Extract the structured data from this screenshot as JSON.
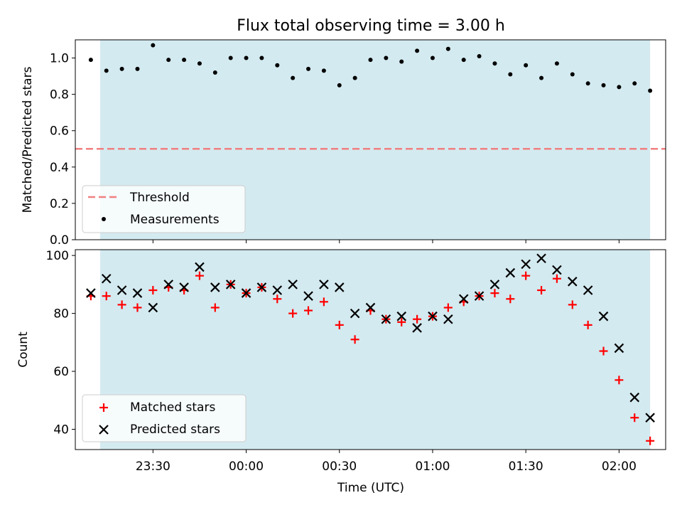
{
  "title": "Flux total observing time = 3.00 h",
  "colors": {
    "band": "#d3eaf0",
    "threshold": "#f08080",
    "measurement": "#000000",
    "matched": "#ff0000",
    "predicted": "#000000"
  },
  "chart_data": [
    {
      "type": "scatter",
      "panel": "top",
      "ylabel": "Matched/Predicted stars",
      "ylim": [
        0,
        1.1
      ],
      "y_ticks": [
        "0.0",
        "0.2",
        "0.4",
        "0.6",
        "0.8",
        "1.0"
      ],
      "x_range": [
        "23:05",
        "02:15"
      ],
      "shaded_span": [
        "23:13",
        "02:10"
      ],
      "threshold": 0.5,
      "legend_position": "lower-left",
      "legend": {
        "threshold": "Threshold",
        "measurements": "Measurements"
      },
      "series": [
        {
          "name": "Measurements",
          "x": [
            "23:10",
            "23:15",
            "23:20",
            "23:25",
            "23:30",
            "23:35",
            "23:40",
            "23:45",
            "23:50",
            "23:55",
            "00:00",
            "00:05",
            "00:10",
            "00:15",
            "00:20",
            "00:25",
            "00:30",
            "00:35",
            "00:40",
            "00:45",
            "00:50",
            "00:55",
            "01:00",
            "01:05",
            "01:10",
            "01:15",
            "01:20",
            "01:25",
            "01:30",
            "01:35",
            "01:40",
            "01:45",
            "01:50",
            "01:55",
            "02:00",
            "02:05",
            "02:10"
          ],
          "y": [
            0.99,
            0.93,
            0.94,
            0.94,
            1.07,
            0.99,
            0.99,
            0.97,
            0.92,
            1.0,
            1.0,
            1.0,
            0.96,
            0.89,
            0.94,
            0.93,
            0.85,
            0.89,
            0.99,
            1.0,
            0.98,
            1.04,
            1.0,
            1.05,
            0.99,
            1.01,
            0.97,
            0.91,
            0.96,
            0.89,
            0.97,
            0.91,
            0.86,
            0.85,
            0.84,
            0.86,
            0.82
          ]
        }
      ]
    },
    {
      "type": "scatter",
      "panel": "bottom",
      "xlabel": "Time (UTC)",
      "ylabel": "Count",
      "ylim": [
        33,
        102
      ],
      "y_ticks": [
        "40",
        "60",
        "80",
        "100"
      ],
      "x_ticks": [
        "23:30",
        "00:00",
        "00:30",
        "01:00",
        "01:30",
        "02:00"
      ],
      "x_range": [
        "23:05",
        "02:15"
      ],
      "shaded_span": [
        "23:13",
        "02:10"
      ],
      "legend_position": "lower-left",
      "legend": {
        "matched": "Matched stars",
        "predicted": "Predicted stars"
      },
      "series": [
        {
          "name": "Matched stars",
          "x": [
            "23:10",
            "23:15",
            "23:20",
            "23:25",
            "23:30",
            "23:35",
            "23:40",
            "23:45",
            "23:50",
            "23:55",
            "00:00",
            "00:05",
            "00:10",
            "00:15",
            "00:20",
            "00:25",
            "00:30",
            "00:35",
            "00:40",
            "00:45",
            "00:50",
            "00:55",
            "01:00",
            "01:05",
            "01:10",
            "01:15",
            "01:20",
            "01:25",
            "01:30",
            "01:35",
            "01:40",
            "01:45",
            "01:50",
            "01:55",
            "02:00",
            "02:05",
            "02:10"
          ],
          "y": [
            86,
            86,
            83,
            82,
            88,
            89,
            88,
            93,
            82,
            90,
            87,
            89,
            85,
            80,
            81,
            84,
            76,
            71,
            81,
            78,
            77,
            78,
            79,
            82,
            84,
            86,
            87,
            85,
            93,
            88,
            92,
            83,
            76,
            67,
            57,
            44,
            36
          ]
        },
        {
          "name": "Predicted stars",
          "x": [
            "23:10",
            "23:15",
            "23:20",
            "23:25",
            "23:30",
            "23:35",
            "23:40",
            "23:45",
            "23:50",
            "23:55",
            "00:00",
            "00:05",
            "00:10",
            "00:15",
            "00:20",
            "00:25",
            "00:30",
            "00:35",
            "00:40",
            "00:45",
            "00:50",
            "00:55",
            "01:00",
            "01:05",
            "01:10",
            "01:15",
            "01:20",
            "01:25",
            "01:30",
            "01:35",
            "01:40",
            "01:45",
            "01:50",
            "01:55",
            "02:00",
            "02:05",
            "02:10"
          ],
          "y": [
            87,
            92,
            88,
            87,
            82,
            90,
            89,
            96,
            89,
            90,
            87,
            89,
            88,
            90,
            86,
            90,
            89,
            80,
            82,
            78,
            79,
            75,
            79,
            78,
            85,
            86,
            90,
            94,
            97,
            99,
            95,
            91,
            88,
            79,
            68,
            51,
            44
          ]
        }
      ]
    }
  ]
}
